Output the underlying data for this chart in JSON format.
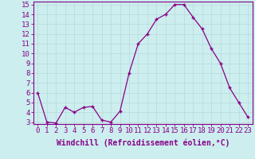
{
  "x": [
    0,
    1,
    2,
    3,
    4,
    5,
    6,
    7,
    8,
    9,
    10,
    11,
    12,
    13,
    14,
    15,
    16,
    17,
    18,
    19,
    20,
    21,
    22,
    23
  ],
  "y": [
    6.0,
    3.0,
    2.9,
    4.5,
    4.0,
    4.5,
    4.6,
    3.2,
    3.0,
    4.1,
    8.0,
    11.0,
    12.0,
    13.5,
    14.0,
    15.0,
    15.0,
    13.7,
    12.5,
    10.5,
    9.0,
    6.5,
    5.0,
    3.5
  ],
  "line_color": "#880088",
  "marker": "+",
  "marker_size": 3,
  "bg_color": "#cceeee",
  "grid_color": "#aacccc",
  "xlabel": "Windchill (Refroidissement éolien,°C)",
  "xlabel_fontsize": 7,
  "ylim_min": 3,
  "ylim_max": 15,
  "yticks": [
    3,
    4,
    5,
    6,
    7,
    8,
    9,
    10,
    11,
    12,
    13,
    14,
    15
  ],
  "xticks": [
    0,
    1,
    2,
    3,
    4,
    5,
    6,
    7,
    8,
    9,
    10,
    11,
    12,
    13,
    14,
    15,
    16,
    17,
    18,
    19,
    20,
    21,
    22,
    23
  ],
  "tick_fontsize": 6.5
}
